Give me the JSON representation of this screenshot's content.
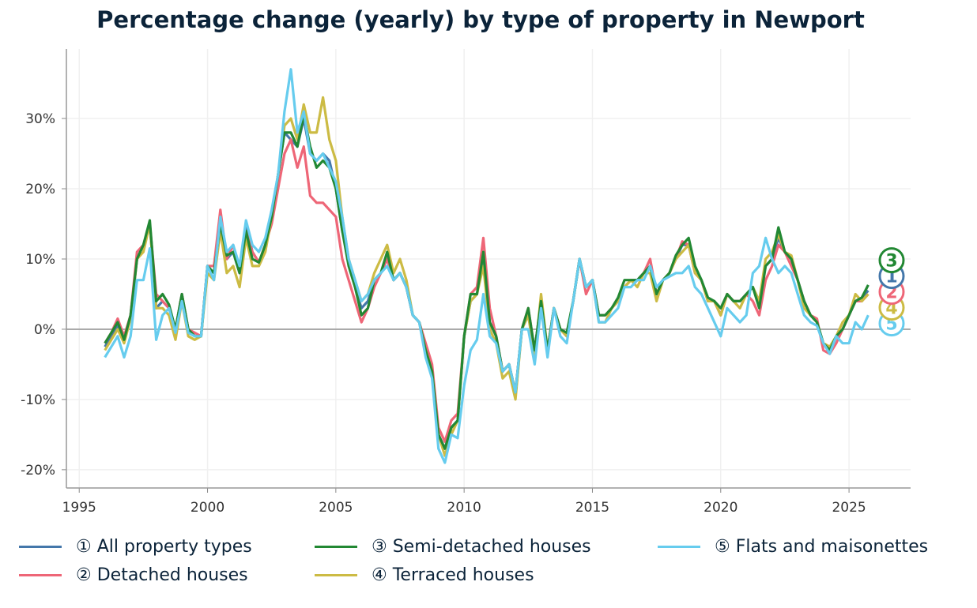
{
  "chart_data": {
    "type": "line",
    "title": "Percentage change (yearly) by type of property in Newport",
    "xlabel": "",
    "ylabel": "",
    "xlim": [
      1994.5,
      2027.4
    ],
    "ylim": [
      -22.6,
      39.9
    ],
    "x_ticks": [
      "1995",
      "2000",
      "2005",
      "2010",
      "2015",
      "2020",
      "2025"
    ],
    "y_ticks": [
      -20,
      -10,
      0,
      10,
      20,
      30
    ],
    "y_tick_labels": [
      "-20%",
      "-10%",
      "0%",
      "10%",
      "20%",
      "30%"
    ],
    "grid": true,
    "legend_placement": "bottom",
    "x": [
      "1996-01",
      "1996-04",
      "1996-07",
      "1996-10",
      "1997-01",
      "1997-04",
      "1997-07",
      "1997-10",
      "1998-01",
      "1998-04",
      "1998-07",
      "1998-10",
      "1999-01",
      "1999-04",
      "1999-07",
      "1999-10",
      "2000-01",
      "2000-04",
      "2000-07",
      "2000-10",
      "2001-01",
      "2001-04",
      "2001-07",
      "2001-10",
      "2002-01",
      "2002-04",
      "2002-07",
      "2002-10",
      "2003-01",
      "2003-04",
      "2003-07",
      "2003-10",
      "2004-01",
      "2004-04",
      "2004-07",
      "2004-10",
      "2005-01",
      "2005-04",
      "2005-07",
      "2005-10",
      "2006-01",
      "2006-04",
      "2006-07",
      "2006-10",
      "2007-01",
      "2007-04",
      "2007-07",
      "2007-10",
      "2008-01",
      "2008-04",
      "2008-07",
      "2008-10",
      "2009-01",
      "2009-04",
      "2009-07",
      "2009-10",
      "2010-01",
      "2010-04",
      "2010-07",
      "2010-10",
      "2011-01",
      "2011-04",
      "2011-07",
      "2011-10",
      "2012-01",
      "2012-04",
      "2012-07",
      "2012-10",
      "2013-01",
      "2013-04",
      "2013-07",
      "2013-10",
      "2014-01",
      "2014-04",
      "2014-07",
      "2014-10",
      "2015-01",
      "2015-04",
      "2015-07",
      "2015-10",
      "2016-01",
      "2016-04",
      "2016-07",
      "2016-10",
      "2017-01",
      "2017-04",
      "2017-07",
      "2017-10",
      "2018-01",
      "2018-04",
      "2018-07",
      "2018-10",
      "2019-01",
      "2019-04",
      "2019-07",
      "2019-10",
      "2020-01",
      "2020-04",
      "2020-07",
      "2020-10",
      "2021-01",
      "2021-04",
      "2021-07",
      "2021-10",
      "2022-01",
      "2022-04",
      "2022-07",
      "2022-10",
      "2023-01",
      "2023-04",
      "2023-07",
      "2023-10",
      "2024-01",
      "2024-04",
      "2024-07",
      "2024-10",
      "2025-01",
      "2025-04",
      "2025-07",
      "2025-10"
    ],
    "series": [
      {
        "name": "All property types",
        "legend": "① All property types",
        "label": "1",
        "color": "#4477aa",
        "values": [
          -2.5,
          -1,
          0.5,
          -1.5,
          2,
          10,
          12,
          15,
          3,
          4,
          3,
          0,
          5,
          0,
          -1,
          -1,
          9,
          8,
          15,
          10,
          11,
          8,
          15,
          11,
          9.5,
          12,
          16,
          22,
          28,
          27,
          26,
          30,
          25,
          24,
          25,
          24,
          20,
          14,
          10,
          6,
          3,
          4,
          7,
          8,
          10,
          7,
          8,
          6,
          2,
          1,
          -3,
          -6,
          -15,
          -17,
          -14,
          -13,
          -1,
          4,
          5,
          10,
          1,
          -1,
          -6,
          -5,
          -9,
          0,
          2,
          -3,
          4,
          -3,
          3,
          0,
          -1,
          4,
          10,
          6,
          7,
          2,
          2,
          3,
          4,
          6,
          7,
          7,
          8,
          9,
          5,
          7,
          8,
          10,
          12,
          12,
          8,
          7,
          4,
          4,
          2,
          5,
          4,
          4,
          5,
          6,
          4,
          9,
          10,
          13,
          11,
          10,
          7,
          4,
          2,
          1,
          -2,
          -3,
          -1,
          0,
          2,
          4,
          4.5,
          5.5
        ]
      },
      {
        "name": "Detached houses",
        "legend": "② Detached houses",
        "label": "2",
        "color": "#ee6677",
        "values": [
          -2,
          -0.5,
          1.5,
          -1,
          2,
          11,
          12,
          15,
          5,
          4,
          3,
          0,
          5,
          0,
          -0.5,
          -1,
          9,
          9,
          17,
          10,
          12,
          8,
          14,
          11,
          9.5,
          12,
          15,
          20,
          25,
          27,
          23,
          26,
          19,
          18,
          18,
          17,
          16,
          10,
          7,
          4,
          1,
          3,
          6,
          8,
          10,
          7,
          8,
          6,
          2,
          1,
          -2,
          -5,
          -14,
          -16,
          -13,
          -12,
          -1,
          5,
          6,
          13,
          3,
          -1,
          -6,
          -5,
          -9,
          0,
          3,
          -3,
          4,
          -3,
          3,
          0,
          -1,
          4,
          10,
          5,
          7,
          2,
          2,
          3,
          4,
          6,
          7,
          7,
          8,
          10,
          5,
          7,
          8,
          10,
          12.5,
          12,
          8,
          7,
          4,
          4,
          2,
          5,
          4,
          4,
          5,
          4,
          2,
          7,
          9,
          12,
          11,
          9,
          7,
          4,
          2,
          1.5,
          -3,
          -3.5,
          -2,
          0,
          2,
          4,
          4,
          5
        ]
      },
      {
        "name": "Semi-detached houses",
        "legend": "③ Semi-detached houses",
        "label": "3",
        "color": "#228833",
        "values": [
          -2,
          -0.5,
          1,
          -1.5,
          2,
          10,
          12,
          15.5,
          4,
          5,
          3.5,
          0,
          5,
          0,
          -1,
          -1,
          9,
          8,
          15,
          10.5,
          11,
          8,
          14,
          10,
          9.5,
          12,
          16,
          22,
          28,
          28,
          26,
          30.5,
          26,
          23,
          24,
          23,
          20,
          14,
          9,
          6,
          2,
          3,
          7,
          8,
          11,
          7,
          8,
          6,
          2,
          1,
          -3,
          -6,
          -15,
          -17,
          -14,
          -13,
          -1,
          5,
          5,
          11,
          1,
          -1,
          -6,
          -5,
          -9,
          0,
          3,
          -3,
          4,
          -3,
          3,
          0,
          -0.5,
          4,
          10,
          6,
          7,
          2,
          2,
          3,
          4.5,
          7,
          7,
          7,
          8,
          9,
          5,
          7,
          8,
          10.5,
          12,
          13,
          9,
          7,
          4.5,
          4,
          3,
          5,
          4,
          4,
          5,
          6,
          3,
          9,
          10,
          14.5,
          11,
          10,
          7,
          4,
          2,
          1,
          -2,
          -3,
          -1,
          0,
          2,
          4,
          4.5,
          6.3
        ]
      },
      {
        "name": "Terraced houses",
        "legend": "④ Terraced houses",
        "label": "4",
        "color": "#ccbb44",
        "values": [
          -3,
          -1.5,
          0,
          -2,
          1.5,
          10,
          11,
          15,
          3,
          3,
          2,
          -1.5,
          4,
          -1,
          -1.5,
          -1,
          8,
          7,
          14,
          8,
          9,
          6,
          13,
          9,
          9,
          11,
          16,
          22,
          29,
          30,
          27,
          32,
          28,
          28,
          33,
          27,
          24,
          16,
          10,
          7,
          4,
          5,
          8,
          10,
          12,
          8,
          10,
          7,
          2,
          1,
          -3,
          -6,
          -15,
          -18,
          -15,
          -13,
          -1,
          4,
          5,
          9,
          0,
          -2,
          -7,
          -6,
          -10,
          0,
          2,
          -4,
          5,
          -3,
          3,
          0,
          -1,
          4,
          10,
          6,
          7,
          1,
          1,
          3,
          4,
          6,
          7,
          6,
          8,
          8,
          4,
          7,
          8,
          10,
          11,
          12,
          8,
          7,
          4,
          4,
          2,
          5,
          4,
          3,
          5,
          6,
          4,
          10,
          11,
          13.5,
          11,
          10.5,
          7,
          3,
          2,
          1,
          -2,
          -2.5,
          -1,
          1,
          2,
          5,
          4,
          5
        ]
      },
      {
        "name": "Flats and maisonettes",
        "legend": "⑤ Flats and maisonettes",
        "label": "5",
        "color": "#66ccee",
        "values": [
          -4,
          -2.5,
          -1,
          -4,
          -1,
          7,
          7,
          11.5,
          -1.5,
          2,
          3,
          -0.5,
          4,
          -0.5,
          -1,
          -1,
          9,
          7,
          16,
          11,
          12,
          9,
          15.5,
          12,
          11,
          13,
          17,
          22,
          31,
          37,
          28,
          31,
          25,
          24,
          25,
          23,
          21,
          16,
          10,
          7,
          4,
          5,
          7,
          8,
          9,
          7,
          8,
          6,
          2,
          1,
          -4,
          -7,
          -17,
          -19,
          -15,
          -15.5,
          -8,
          -3,
          -1.5,
          5,
          -1,
          -2,
          -6,
          -5,
          -9,
          0,
          0,
          -5,
          3,
          -4,
          3,
          -1,
          -2,
          4,
          10,
          6,
          7,
          1,
          1,
          2,
          3,
          6,
          6,
          7,
          7,
          9,
          6,
          7,
          7.5,
          8,
          8,
          9,
          6,
          5,
          3,
          1,
          -1,
          3,
          2,
          1,
          2,
          8,
          9,
          13,
          10,
          8,
          9,
          8,
          5,
          2,
          1,
          0.5,
          -2,
          -3.5,
          -1,
          -2,
          -2,
          1,
          0,
          2
        ]
      }
    ]
  }
}
